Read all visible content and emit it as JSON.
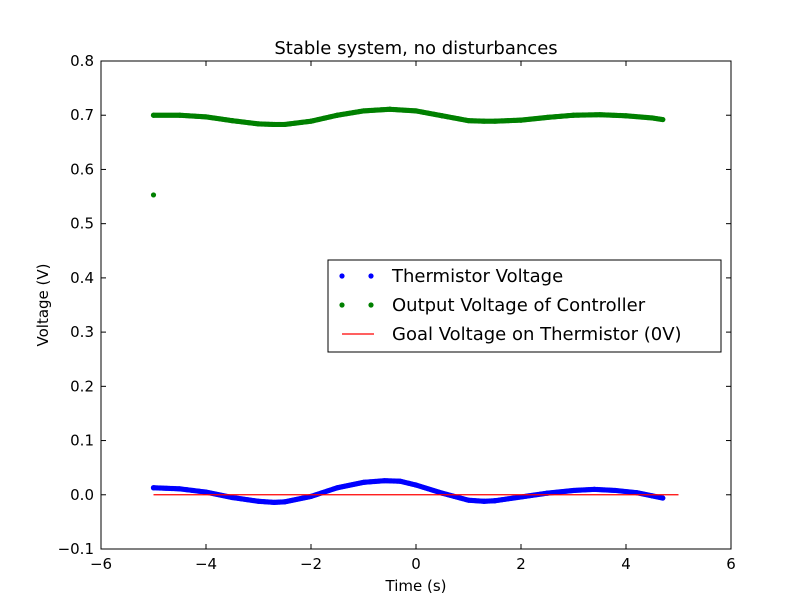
{
  "chart_data": {
    "type": "scatter",
    "title": "Stable system, no disturbances",
    "xlabel": "Time (s)",
    "ylabel": "Voltage (V)",
    "xlim": [
      -6,
      6
    ],
    "ylim": [
      -0.1,
      0.8
    ],
    "xticks": [
      -6,
      -4,
      -2,
      0,
      2,
      4,
      6
    ],
    "xtick_labels": [
      "−6",
      "−4",
      "−2",
      "0",
      "2",
      "4",
      "6"
    ],
    "yticks": [
      -0.1,
      0.0,
      0.1,
      0.2,
      0.3,
      0.4,
      0.5,
      0.6,
      0.7,
      0.8
    ],
    "ytick_labels": [
      "−0.1",
      "0.0",
      "0.1",
      "0.2",
      "0.3",
      "0.4",
      "0.5",
      "0.6",
      "0.7",
      "0.8"
    ],
    "grid": false,
    "legend_position": "center-right",
    "series": [
      {
        "name": "Thermistor Voltage",
        "style": "dots",
        "color": "#0000ff",
        "x": [
          -5.0,
          -4.5,
          -4.0,
          -3.5,
          -3.0,
          -2.7,
          -2.5,
          -2.0,
          -1.5,
          -1.0,
          -0.6,
          -0.3,
          0.0,
          0.5,
          1.0,
          1.3,
          1.5,
          2.0,
          2.5,
          3.0,
          3.4,
          3.8,
          4.2,
          4.5,
          4.7
        ],
        "y": [
          0.013,
          0.011,
          0.005,
          -0.005,
          -0.012,
          -0.014,
          -0.013,
          -0.003,
          0.013,
          0.023,
          0.026,
          0.025,
          0.018,
          0.003,
          -0.01,
          -0.012,
          -0.011,
          -0.004,
          0.003,
          0.008,
          0.01,
          0.008,
          0.004,
          -0.002,
          -0.006
        ]
      },
      {
        "name": "Output Voltage of Controller",
        "style": "dots",
        "color": "#008000",
        "x": [
          -5.0,
          -5.0,
          -4.5,
          -4.0,
          -3.5,
          -3.0,
          -2.7,
          -2.5,
          -2.0,
          -1.5,
          -1.0,
          -0.5,
          0.0,
          0.5,
          1.0,
          1.3,
          1.5,
          2.0,
          2.5,
          3.0,
          3.5,
          4.0,
          4.5,
          4.7
        ],
        "y": [
          0.553,
          0.7,
          0.7,
          0.697,
          0.69,
          0.684,
          0.683,
          0.683,
          0.689,
          0.7,
          0.708,
          0.711,
          0.708,
          0.699,
          0.69,
          0.689,
          0.689,
          0.691,
          0.696,
          0.7,
          0.701,
          0.699,
          0.695,
          0.692
        ]
      },
      {
        "name": "Goal Voltage on Thermistor (0V)",
        "style": "line",
        "color": "#ff0000",
        "x": [
          -5.0,
          5.0
        ],
        "y": [
          0.0,
          0.0
        ]
      }
    ]
  }
}
